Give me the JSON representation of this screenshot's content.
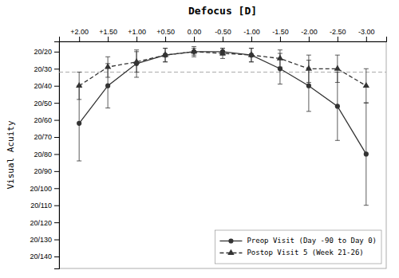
{
  "chart_data": {
    "type": "line",
    "title": "Defocus [D]",
    "ylabel": "Visual Acuity",
    "x": [
      2.0,
      1.5,
      1.0,
      0.5,
      0.0,
      -0.5,
      -1.0,
      -1.5,
      -2.0,
      -2.5,
      -3.0
    ],
    "xlim": [
      2.35,
      -3.35
    ],
    "xticks": [
      {
        "value": 2.0,
        "label": "+2.00"
      },
      {
        "value": 1.5,
        "label": "+1.50"
      },
      {
        "value": 1.0,
        "label": "+1.00"
      },
      {
        "value": 0.5,
        "label": "+0.50"
      },
      {
        "value": 0.0,
        "label": "0.00"
      },
      {
        "value": -0.5,
        "label": "-0.50"
      },
      {
        "value": -1.0,
        "label": "-1.00"
      },
      {
        "value": -1.5,
        "label": "-1.50"
      },
      {
        "value": -2.0,
        "label": "-2.00"
      },
      {
        "value": -2.5,
        "label": "-2.50"
      },
      {
        "value": -3.0,
        "label": "-3.00"
      }
    ],
    "ylim": [
      147,
      14
    ],
    "yticks": [
      {
        "value": 20,
        "label": "20/20"
      },
      {
        "value": 30,
        "label": "20/30"
      },
      {
        "value": 40,
        "label": "20/40"
      },
      {
        "value": 50,
        "label": "20/50"
      },
      {
        "value": 60,
        "label": "20/60"
      },
      {
        "value": 70,
        "label": "20/70"
      },
      {
        "value": 80,
        "label": "20/80"
      },
      {
        "value": 90,
        "label": "20/90"
      },
      {
        "value": 100,
        "label": "20/100"
      },
      {
        "value": 110,
        "label": "20/110"
      },
      {
        "value": 120,
        "label": "20/120"
      },
      {
        "value": 130,
        "label": "20/130"
      },
      {
        "value": 140,
        "label": "20/140"
      }
    ],
    "series": [
      {
        "name": "Preop Visit (Day -90 to Day 0)",
        "color": "#333333",
        "marker": "circle",
        "line_style": "solid",
        "values": [
          62,
          40,
          27,
          22,
          20,
          20,
          22,
          30,
          40,
          52,
          80
        ],
        "yerr_lo": [
          22,
          13,
          8,
          4,
          2,
          2,
          4,
          9,
          15,
          20,
          30
        ],
        "yerr_hi": [
          22,
          13,
          8,
          4,
          2,
          2,
          4,
          9,
          15,
          20,
          30
        ]
      },
      {
        "name": "Postop Visit 5 (Week 21-26)",
        "color": "#333333",
        "marker": "triangle",
        "line_style": "dashed",
        "values": [
          40,
          29,
          26,
          22,
          20,
          21,
          22,
          24,
          30,
          30,
          40
        ],
        "yerr_lo": [
          8,
          6,
          6,
          4,
          3,
          3,
          4,
          5,
          8,
          8,
          10
        ],
        "yerr_hi": [
          8,
          6,
          6,
          4,
          3,
          3,
          4,
          5,
          8,
          8,
          10
        ]
      }
    ],
    "reference_line": {
      "y": 32,
      "color": "#aaaaaa",
      "line_style": "dashed"
    },
    "grid": false,
    "legend": "lower right"
  }
}
